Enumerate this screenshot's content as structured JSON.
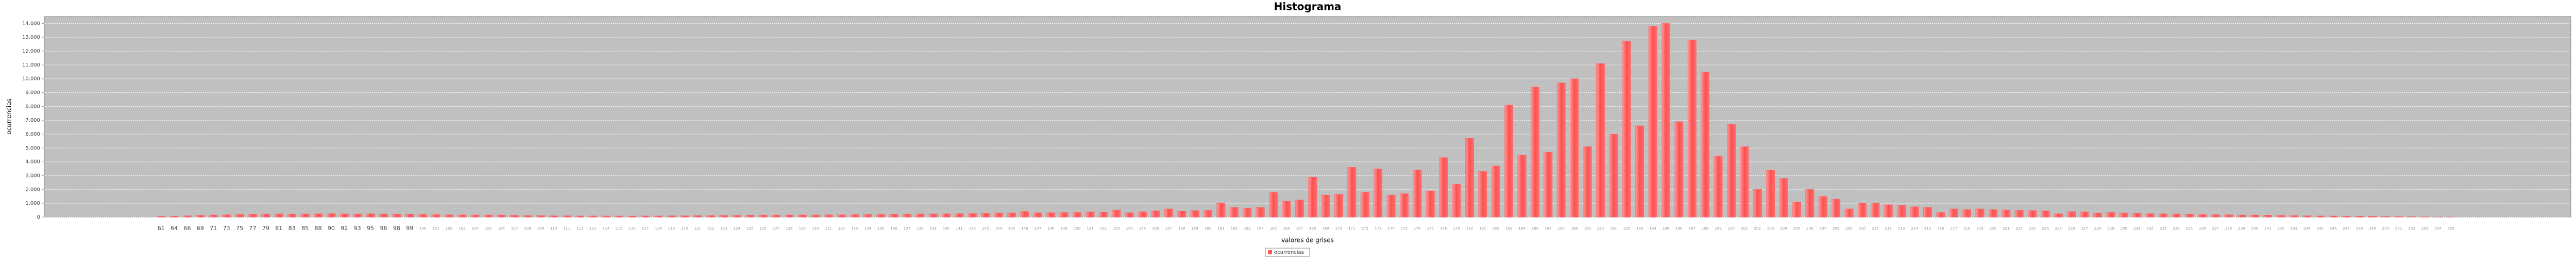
{
  "chart_data": {
    "type": "bar",
    "title": "Histograma",
    "x_label": "valores de grises",
    "y_label": "ocurrencias",
    "categories": [
      61,
      64,
      66,
      69,
      71,
      73,
      75,
      77,
      79,
      81,
      83,
      85,
      88,
      90,
      92,
      93,
      95,
      96,
      98,
      99,
      100,
      101,
      102,
      103,
      104,
      105,
      106,
      107,
      108,
      109,
      110,
      111,
      112,
      113,
      114,
      115,
      116,
      117,
      118,
      119,
      120,
      121,
      122,
      123,
      124,
      125,
      126,
      127,
      128,
      129,
      130,
      131,
      132,
      133,
      134,
      135,
      136,
      137,
      138,
      139,
      140,
      141,
      142,
      143,
      144,
      145,
      146,
      147,
      148,
      149,
      150,
      151,
      152,
      153,
      154,
      155,
      156,
      157,
      158,
      159,
      160,
      161,
      162,
      163,
      164,
      165,
      166,
      167,
      168,
      169,
      170,
      171,
      172,
      173,
      174,
      175,
      176,
      177,
      178,
      179,
      180,
      181,
      182,
      183,
      184,
      185,
      186,
      187,
      188,
      189,
      190,
      191,
      192,
      193,
      194,
      195,
      196,
      197,
      198,
      199,
      200,
      201,
      202,
      203,
      204,
      205,
      206,
      207,
      208,
      209,
      210,
      211,
      212,
      213,
      214,
      215,
      216,
      217,
      218,
      219,
      220,
      221,
      222,
      223,
      224,
      225,
      226,
      227,
      228,
      229,
      230,
      231,
      232,
      233,
      234,
      235,
      236,
      237,
      238,
      239,
      240,
      241,
      242,
      243,
      244,
      245,
      246,
      247,
      248,
      249,
      250,
      251,
      252,
      253,
      254,
      255
    ],
    "series": [
      {
        "name": "ocurrencias",
        "color": "#ff5a5a",
        "values": [
          60,
          80,
          110,
          130,
          160,
          180,
          200,
          210,
          230,
          240,
          220,
          230,
          250,
          260,
          240,
          230,
          250,
          240,
          220,
          210,
          200,
          190,
          180,
          170,
          160,
          150,
          140,
          130,
          120,
          120,
          110,
          110,
          100,
          100,
          100,
          90,
          90,
          100,
          100,
          110,
          110,
          120,
          120,
          130,
          130,
          140,
          150,
          150,
          160,
          170,
          170,
          180,
          180,
          190,
          200,
          200,
          210,
          220,
          230,
          240,
          250,
          260,
          270,
          280,
          300,
          310,
          420,
          320,
          330,
          340,
          350,
          380,
          360,
          520,
          330,
          390,
          450,
          600,
          440,
          480,
          500,
          1000,
          700,
          650,
          700,
          1800,
          1150,
          1250,
          2900,
          1600,
          1650,
          3600,
          1800,
          3500,
          1600,
          1700,
          3400,
          1900,
          4300,
          2400,
          5700,
          3300,
          3700,
          8100,
          4500,
          9400,
          4700,
          9700,
          10000,
          5100,
          11100,
          6000,
          12700,
          6600,
          13800,
          14000,
          6900,
          12800,
          10500,
          4400,
          6700,
          5100,
          2000,
          3400,
          2800,
          1100,
          2000,
          1500,
          1300,
          600,
          1000,
          1000,
          900,
          850,
          750,
          700,
          350,
          600,
          550,
          600,
          550,
          520,
          500,
          480,
          450,
          250,
          400,
          380,
          300,
          350,
          300,
          280,
          260,
          250,
          230,
          220,
          200,
          190,
          180,
          160,
          150,
          140,
          130,
          120,
          110,
          100,
          90,
          80,
          70,
          60,
          50,
          45,
          40,
          35,
          30,
          20
        ]
      }
    ],
    "ylim": [
      0,
      14500
    ],
    "yticks": [
      0,
      {
        "value": 1000,
        "label": "1.000"
      },
      {
        "value": 2000,
        "label": "2.000"
      },
      {
        "value": 3000,
        "label": "3.000"
      },
      {
        "value": 4000,
        "label": "4.000"
      },
      {
        "value": 5000,
        "label": "5.000"
      },
      {
        "value": 6000,
        "label": "6.000"
      },
      {
        "value": 7000,
        "label": "7.000"
      },
      {
        "value": 8000,
        "label": "8.000"
      },
      {
        "value": 9000,
        "label": "9.000"
      },
      {
        "value": 10000,
        "label": "10.000"
      },
      {
        "value": 11000,
        "label": "11.000"
      },
      {
        "value": 12000,
        "label": "12.000"
      },
      {
        "value": 13000,
        "label": "13.000"
      },
      {
        "value": 14000,
        "label": "14.000"
      }
    ],
    "grid": true,
    "legend": "bottom"
  }
}
